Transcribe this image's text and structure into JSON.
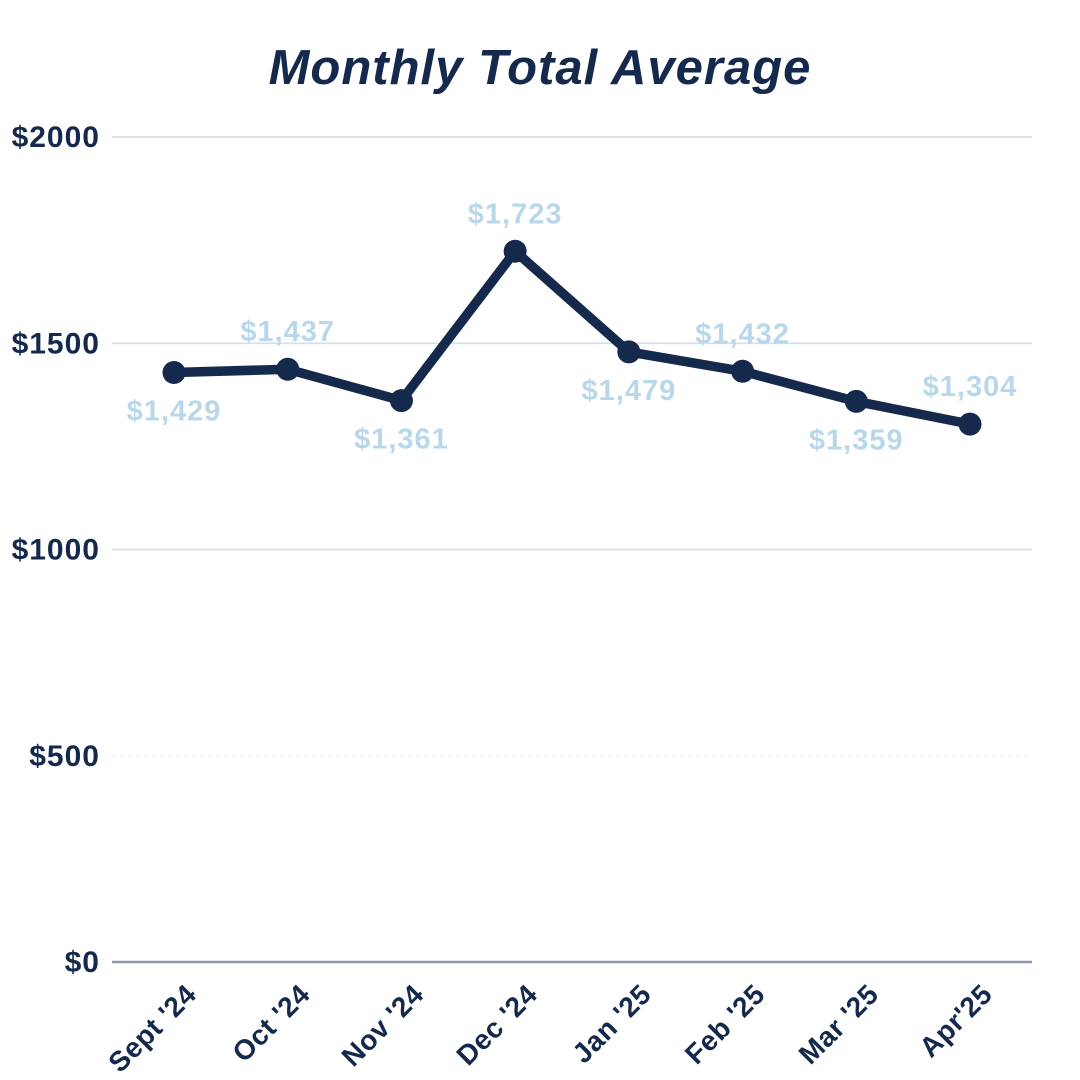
{
  "title": "Monthly Total Average",
  "colors": {
    "title_text": "#14294b",
    "line": "#14294b",
    "point": "#14294b",
    "point_label": "#b8d8ea",
    "axis_text": "#14294b",
    "gridline": "#d9dfe6",
    "gridline_faint": "#e8ecef",
    "baseline": "#8e9aab",
    "background": "#ffffff"
  },
  "chart_data": {
    "type": "line",
    "title": "Monthly Total Average",
    "xlabel": "",
    "ylabel": "",
    "categories": [
      "Sept '24",
      "Oct '24",
      "Nov '24",
      "Dec '24",
      "Jan '25",
      "Feb '25",
      "Mar '25",
      "Apr'25"
    ],
    "values": [
      1429,
      1437,
      1361,
      1723,
      1479,
      1432,
      1359,
      1304
    ],
    "point_labels": [
      "$1,429",
      "$1,437",
      "$1,361",
      "$1,723",
      "$1,479",
      "$1,432",
      "$1,359",
      "$1,304"
    ],
    "label_position": [
      "below",
      "above",
      "below",
      "above",
      "below",
      "above",
      "below",
      "above"
    ],
    "ylim": [
      0,
      2000
    ],
    "yticks": [
      0,
      500,
      1000,
      1500,
      2000
    ],
    "ytick_labels": [
      "$0",
      "$500",
      "$1000",
      "$1500",
      "$2000"
    ],
    "grid_styles": [
      "baseline",
      "dashed",
      "solid",
      "solid",
      "solid"
    ],
    "grid": true,
    "legend": "none"
  }
}
